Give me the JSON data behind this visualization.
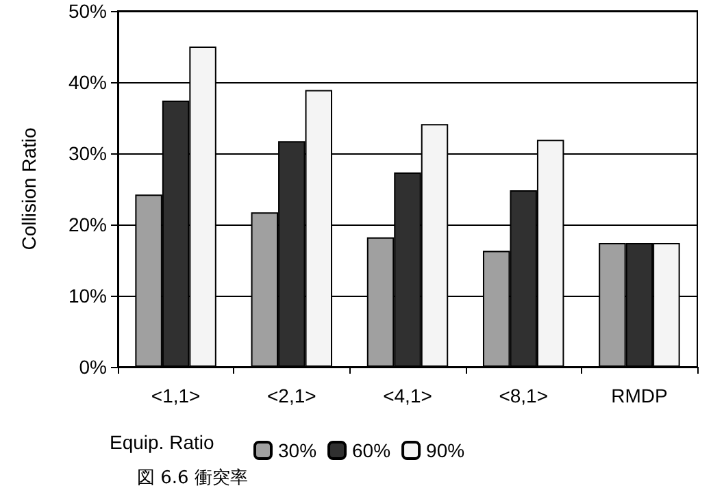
{
  "chart_data": {
    "type": "bar",
    "ylabel": "Collision Ratio",
    "legend_title": "Equip. Ratio",
    "categories": [
      "<1,1>",
      "<2,1>",
      "<4,1>",
      "<8,1>",
      "RMDP"
    ],
    "series": [
      {
        "name": "30%",
        "color": "#a0a0a0",
        "values": [
          24.2,
          21.7,
          18.2,
          16.3,
          17.4
        ]
      },
      {
        "name": "60%",
        "color": "#303030",
        "values": [
          37.4,
          31.7,
          27.3,
          24.8,
          17.4
        ]
      },
      {
        "name": "90%",
        "color": "#f4f4f4",
        "values": [
          45.0,
          38.9,
          34.1,
          31.9,
          17.4
        ]
      }
    ],
    "ylim": [
      0,
      50
    ],
    "yticks": [
      {
        "value": 0,
        "label": "0%"
      },
      {
        "value": 10,
        "label": "10%"
      },
      {
        "value": 20,
        "label": "20%"
      },
      {
        "value": 30,
        "label": "30%"
      },
      {
        "value": 40,
        "label": "40%"
      },
      {
        "value": 50,
        "label": "50%"
      }
    ],
    "grid": "y",
    "legend": "bottom",
    "annotations": [
      "図 6.6 衝突率"
    ]
  }
}
